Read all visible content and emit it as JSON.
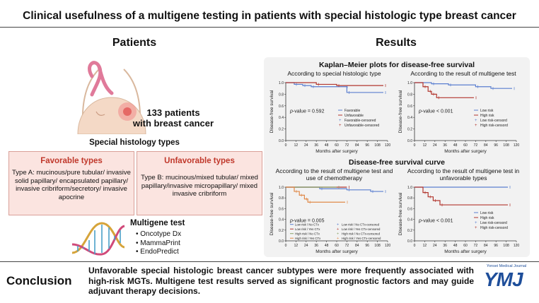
{
  "title": "Clinical usefulness of a multigene testing in patients with special histologic type breast cancer",
  "patients": {
    "heading": "Patients",
    "count_line1": "133 patients",
    "count_line2": "with breast cancer",
    "histology_heading": "Special histology types",
    "favorable": {
      "heading": "Favorable types",
      "text": "Type A: mucinous/pure tubular/ invasive solid papillary/ encapsulated papillary/ invasive cribriform/secretory/ invasive apocrine"
    },
    "unfavorable": {
      "heading": "Unfavorable types",
      "text": "Type B: mucinous/mixed tubular/ mixed papillary/invasive micropapillary/ mixed invasive cribriform"
    },
    "multigene": {
      "heading": "Multigene test",
      "items": [
        "Oncotype Dx",
        "MammaPrint",
        "EndoPredict"
      ]
    }
  },
  "results": {
    "heading": "Results",
    "km_heading": "Kaplan–Meier plots for disease-free survival",
    "dfs_heading": "Disease-free survival curve"
  },
  "conclusion": {
    "heading": "Conclusion",
    "text": "Unfavorable special histologic breast cancer subtypes were more frequently associated with high-risk MGTs. Multigene test results served as significant prognostic factors and may guide adjuvant therapy decisions."
  },
  "journal": {
    "name": "Yonsei Medical Journal",
    "logo": "YMJ"
  },
  "colors": {
    "blue": "#5b7fd0",
    "red": "#b2362e",
    "orange": "#e08a4a",
    "ribbon": "#e07a9a"
  },
  "chart_data": [
    {
      "type": "line",
      "subtitle": "According to special histologic type",
      "xlabel": "Months after surgery",
      "ylabel": "Disease-free survival",
      "xticks": [
        0,
        12,
        24,
        36,
        48,
        60,
        72,
        84,
        96,
        108,
        120
      ],
      "yticks": [
        "0.0",
        "0.2",
        "0.4",
        "0.6",
        "0.8",
        "1.0"
      ],
      "xlim": [
        0,
        120
      ],
      "ylim": [
        0,
        1
      ],
      "pvalue_prefix": "p",
      "pvalue_text": "-value = 0.592",
      "legend": [
        "Favorable",
        "Unfavorable",
        "Favorable-censored",
        "Unfavorable-censored"
      ],
      "series": [
        {
          "name": "Favorable",
          "color": "#5b7fd0",
          "steps": [
            [
              0,
              1.0
            ],
            [
              10,
              0.97
            ],
            [
              20,
              0.95
            ],
            [
              30,
              0.93
            ],
            [
              70,
              0.93
            ],
            [
              72,
              0.83
            ],
            [
              115,
              0.83
            ]
          ]
        },
        {
          "name": "Unfavorable",
          "color": "#b2362e",
          "steps": [
            [
              0,
              1.0
            ],
            [
              36,
              0.97
            ],
            [
              60,
              0.95
            ],
            [
              115,
              0.95
            ]
          ]
        }
      ]
    },
    {
      "type": "line",
      "subtitle": "According to the result of multigene test",
      "xlabel": "Months after surgery",
      "ylabel": "Disease-free survival",
      "xticks": [
        0,
        12,
        24,
        36,
        48,
        60,
        72,
        84,
        96,
        108,
        120
      ],
      "yticks": [
        "0.0",
        "0.2",
        "0.4",
        "0.6",
        "0.8",
        "1.0"
      ],
      "xlim": [
        0,
        120
      ],
      "ylim": [
        0,
        1
      ],
      "pvalue_prefix": "p",
      "pvalue_text": "-value < 0.001",
      "legend": [
        "Low risk",
        "High risk",
        "Low risk-censord",
        "High risk-censord"
      ],
      "series": [
        {
          "name": "Low risk",
          "color": "#5b7fd0",
          "steps": [
            [
              0,
              1.0
            ],
            [
              20,
              0.98
            ],
            [
              40,
              0.96
            ],
            [
              72,
              0.93
            ],
            [
              90,
              0.9
            ],
            [
              115,
              0.9
            ]
          ]
        },
        {
          "name": "High risk",
          "color": "#b2362e",
          "steps": [
            [
              0,
              1.0
            ],
            [
              10,
              0.93
            ],
            [
              16,
              0.85
            ],
            [
              20,
              0.8
            ],
            [
              26,
              0.74
            ],
            [
              70,
              0.74
            ]
          ]
        }
      ]
    },
    {
      "type": "line",
      "subtitle": "According to the result of multigene test and use of chemotherapy",
      "xlabel": "Months after surgery",
      "ylabel": "Disease-free survival",
      "xticks": [
        0,
        12,
        24,
        36,
        48,
        60,
        72,
        84,
        96,
        108,
        120
      ],
      "yticks": [
        "0.0",
        "0.2",
        "0.4",
        "0.6",
        "0.8",
        "1.0"
      ],
      "xlim": [
        0,
        120
      ],
      "ylim": [
        0,
        1
      ],
      "pvalue_prefix": "p",
      "pvalue_text": "-value = 0.005",
      "legend": [
        "Low risk / No CTx",
        "Low risk / Yes CTx",
        "High risk / No CTx",
        "High risk / Yes CTx",
        "Low risk / No CTx-censored",
        "Low risk / Yes CTx-censored",
        "High risk / No CTx-censored",
        "High risk / Yes CTx-censored"
      ],
      "series": [
        {
          "name": "Low risk / No CTx",
          "color": "#5b7fd0",
          "steps": [
            [
              0,
              1.0
            ],
            [
              40,
              0.97
            ],
            [
              72,
              0.95
            ],
            [
              100,
              0.92
            ],
            [
              115,
              0.92
            ]
          ]
        },
        {
          "name": "Low risk / Yes CTx",
          "color": "#b2362e",
          "steps": [
            [
              0,
              1.0
            ],
            [
              72,
              1.0
            ]
          ]
        },
        {
          "name": "High risk / No CTx",
          "color": "#8aa36a",
          "steps": [
            [
              0,
              1.0
            ],
            [
              60,
              1.0
            ]
          ]
        },
        {
          "name": "High risk / Yes CTx",
          "color": "#e08a4a",
          "steps": [
            [
              0,
              1.0
            ],
            [
              10,
              0.92
            ],
            [
              16,
              0.85
            ],
            [
              22,
              0.78
            ],
            [
              26,
              0.72
            ],
            [
              70,
              0.72
            ]
          ]
        }
      ]
    },
    {
      "type": "line",
      "subtitle": "According to the result of multigene test in unfavorable types",
      "xlabel": "Months after surgery",
      "ylabel": "Disease-free survival",
      "xticks": [
        0,
        12,
        24,
        36,
        48,
        60,
        72,
        84,
        96,
        108,
        120
      ],
      "yticks": [
        "0.0",
        "0.2",
        "0.4",
        "0.6",
        "0.8",
        "1.0"
      ],
      "xlim": [
        0,
        120
      ],
      "ylim": [
        0,
        1
      ],
      "pvalue_prefix": "p",
      "pvalue_text": "-value < 0.001",
      "legend": [
        "Low risk",
        "High risk",
        "Low risk-censord",
        "High risk-censord"
      ],
      "series": [
        {
          "name": "Low risk",
          "color": "#5b7fd0",
          "steps": [
            [
              0,
              1.0
            ],
            [
              110,
              1.0
            ]
          ]
        },
        {
          "name": "High risk",
          "color": "#b2362e",
          "steps": [
            [
              0,
              1.0
            ],
            [
              10,
              0.9
            ],
            [
              16,
              0.82
            ],
            [
              22,
              0.75
            ],
            [
              30,
              0.67
            ],
            [
              110,
              0.67
            ]
          ]
        }
      ]
    }
  ]
}
